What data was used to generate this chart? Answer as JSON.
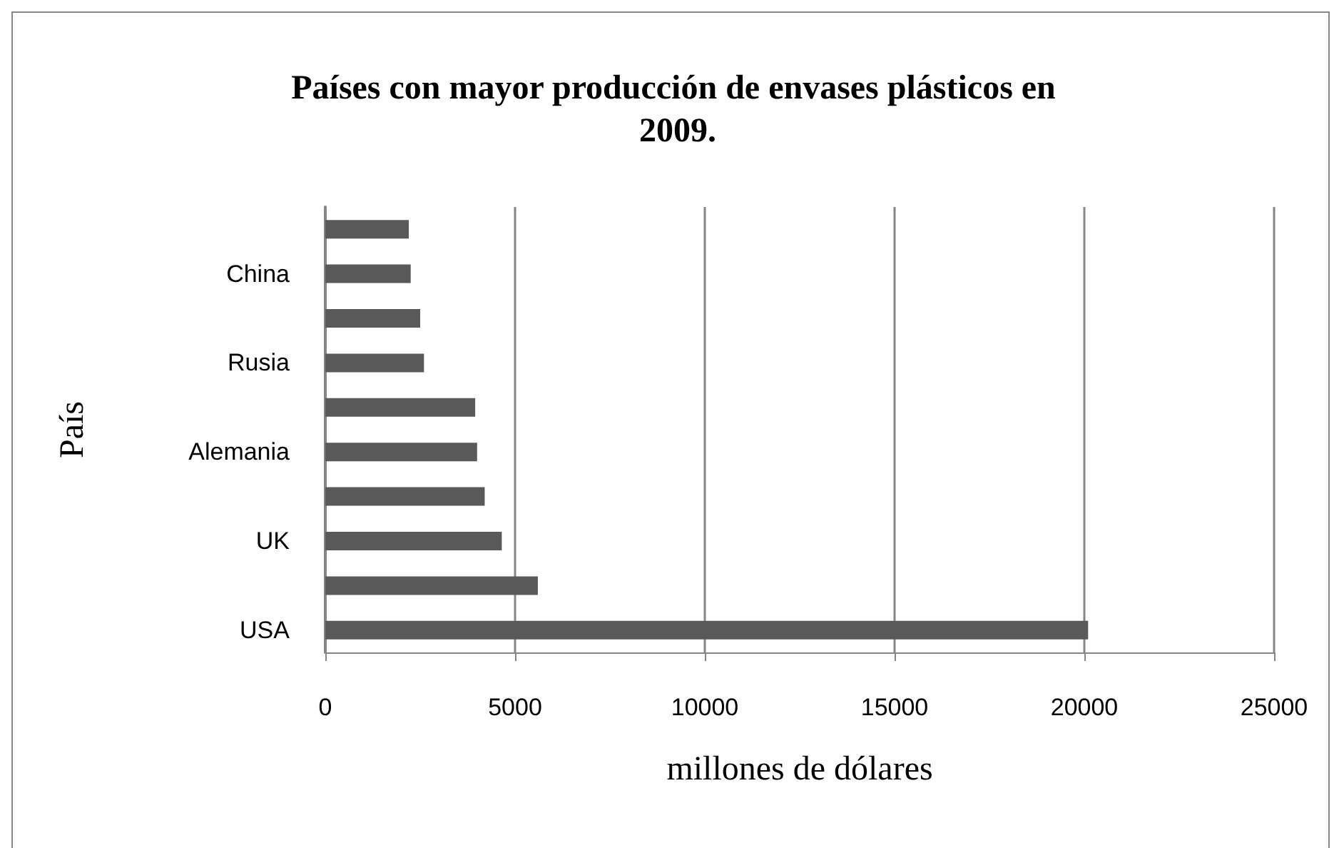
{
  "chart_data": {
    "type": "bar",
    "orientation": "horizontal",
    "title": "Países con mayor producción de envases plásticos en 2009.",
    "xlabel": "millones de dólares",
    "ylabel": "País",
    "categories": [
      null,
      "China",
      null,
      "Rusia",
      null,
      "Alemania",
      null,
      "UK",
      null,
      "USA"
    ],
    "values": [
      2200,
      2250,
      2500,
      2600,
      3950,
      4000,
      4200,
      4650,
      5600,
      20100
    ],
    "color": "#595959",
    "xlim": [
      0,
      25000
    ],
    "xticks": [
      0,
      5000,
      10000,
      15000,
      20000,
      25000
    ],
    "grid": "x"
  }
}
